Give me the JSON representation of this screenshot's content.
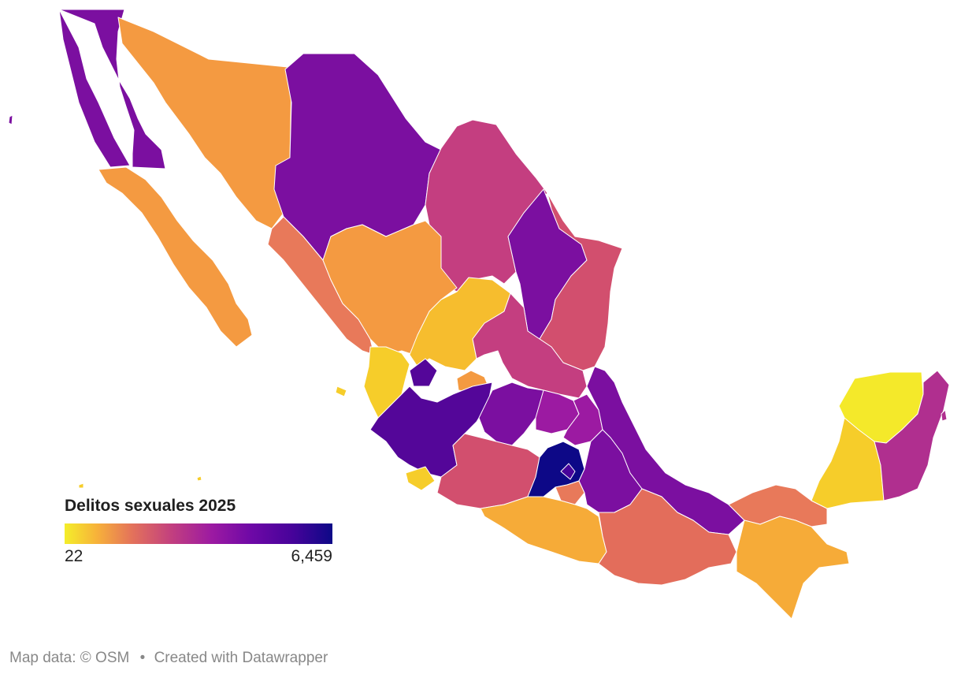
{
  "legend": {
    "title": "Delitos sexuales 2025",
    "min_label": "22",
    "max_label": "6,459",
    "min_value": 22,
    "max_value": 6459
  },
  "footer": {
    "map_data": "Map data: © OSM",
    "separator": "•",
    "credit": "Created with Datawrapper"
  },
  "colors": {
    "scale": [
      "#f4ee2a",
      "#f7b23a",
      "#e4735a",
      "#c23f7f",
      "#9c1aa2",
      "#6d08a6",
      "#47039a",
      "#0d0887"
    ],
    "background": "#ffffff"
  }
}
